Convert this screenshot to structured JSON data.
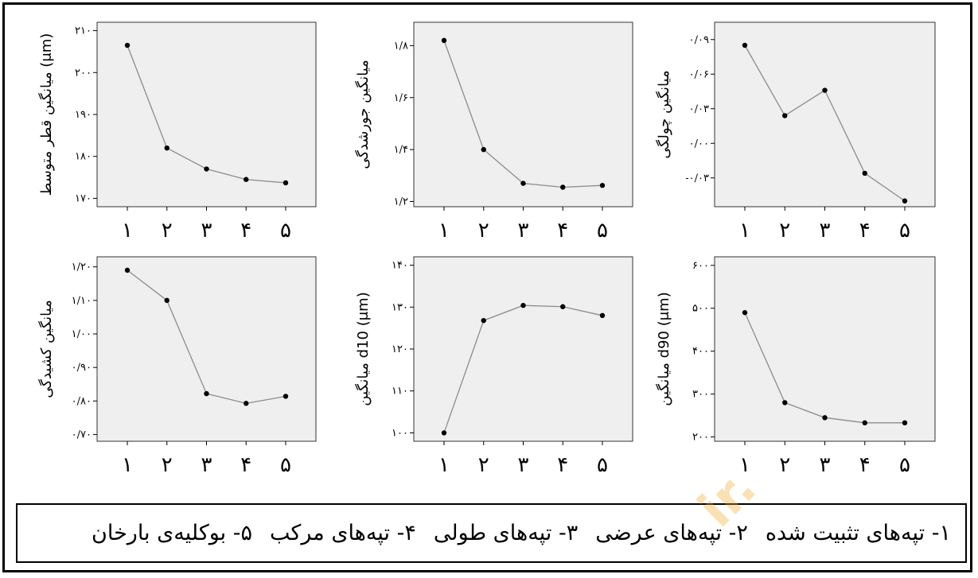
{
  "chart_data": [
    {
      "type": "line",
      "ylabel": "میانگین قطر متوسط (μm)",
      "categories": [
        "۱",
        "۲",
        "۳",
        "۴",
        "۵"
      ],
      "yticks": [
        "۲۱۰",
        "۲۰۰",
        "۱۹۰",
        "۱۸۰",
        "۱۷۰"
      ],
      "ytick_values": [
        210,
        200,
        190,
        180,
        170
      ],
      "ylim": [
        168,
        212
      ],
      "values": [
        206.5,
        182,
        177,
        174.5,
        173.7
      ],
      "grid": false
    },
    {
      "type": "line",
      "ylabel": "میانگین جورشدگی",
      "categories": [
        "۱",
        "۲",
        "۳",
        "۴",
        "۵"
      ],
      "yticks": [
        "۱/۸",
        "۱/۶",
        "۱/۴",
        "۱/۲"
      ],
      "ytick_values": [
        1.8,
        1.6,
        1.4,
        1.2
      ],
      "ylim": [
        1.18,
        1.89
      ],
      "values": [
        1.82,
        1.4,
        1.27,
        1.255,
        1.262
      ],
      "grid": false
    },
    {
      "type": "line",
      "ylabel": "میانگین چولگی",
      "categories": [
        "۱",
        "۲",
        "۳",
        "۴",
        "۵"
      ],
      "yticks": [
        "۰/۰۹",
        "۰/۰۶",
        "۰/۰۳",
        "۰/۰۰",
        "-۰/۰۳"
      ],
      "ytick_values": [
        0.09,
        0.06,
        0.03,
        0.0,
        -0.03
      ],
      "ylim": [
        -0.055,
        0.105
      ],
      "values": [
        0.085,
        0.024,
        0.046,
        -0.026,
        -0.05
      ],
      "grid": false
    },
    {
      "type": "line",
      "ylabel": "میانگین کشیدگی",
      "categories": [
        "۱",
        "۲",
        "۳",
        "۴",
        "۵"
      ],
      "yticks": [
        "۱/۲۰",
        "۱/۱۰",
        "۱/۰۰",
        "۰/۹۰",
        "۰/۸۰",
        "۰/۷۰"
      ],
      "ytick_values": [
        1.2,
        1.1,
        1.0,
        0.9,
        0.8,
        0.7
      ],
      "ylim": [
        0.68,
        1.23
      ],
      "values": [
        1.19,
        1.1,
        0.822,
        0.793,
        0.814
      ],
      "grid": false
    },
    {
      "type": "line",
      "ylabel": "میانگین d10 (μm)",
      "categories": [
        "۱",
        "۲",
        "۳",
        "۴",
        "۵"
      ],
      "yticks": [
        "۱۴۰",
        "۱۳۰",
        "۱۲۰",
        "۱۱۰",
        "۱۰۰"
      ],
      "ytick_values": [
        140,
        130,
        120,
        110,
        100
      ],
      "ylim": [
        98,
        142
      ],
      "values": [
        100,
        126.8,
        130.4,
        130.1,
        128
      ],
      "grid": false
    },
    {
      "type": "line",
      "ylabel": "میانگین d90 (μm)",
      "categories": [
        "۱",
        "۲",
        "۳",
        "۴",
        "۵"
      ],
      "yticks": [
        "۶۰۰",
        "۵۰۰",
        "۴۰۰",
        "۳۰۰",
        "۲۰۰"
      ],
      "ytick_values": [
        600,
        500,
        400,
        300,
        200
      ],
      "ylim": [
        190,
        620
      ],
      "values": [
        490,
        280,
        245,
        233,
        233
      ],
      "grid": false
    }
  ],
  "legend": {
    "items": [
      "۱- تپه‌های تثبیت شده",
      "۲- تپه‌های عرضی",
      "۳- تپه‌های طولی",
      "۴- تپه‌های مرکب",
      "۵- بوکلیه‌ی بارخان"
    ]
  },
  "watermark": "ir.",
  "colors": {
    "panel_bg": "#efefef",
    "line": "#8c8c8c",
    "marker": "#000000"
  }
}
